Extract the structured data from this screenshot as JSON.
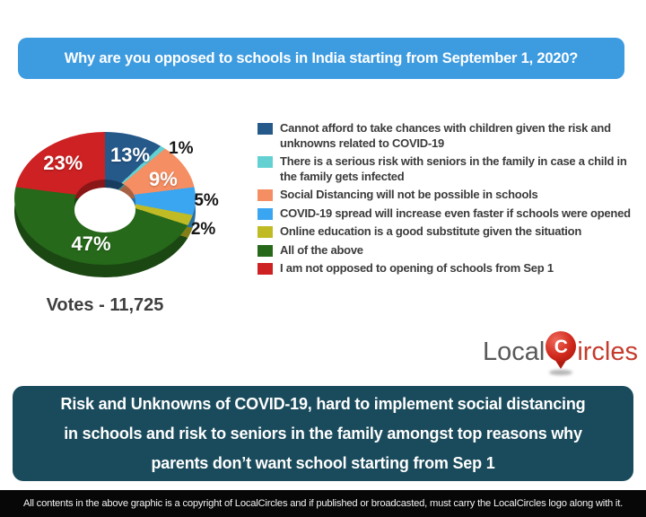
{
  "title": "Why are you opposed to schools in India starting from September 1, 2020?",
  "votes_label": "Votes - 11,725",
  "chart_data": {
    "type": "pie",
    "donut": true,
    "title": "Why are you opposed to schools in India starting from September 1, 2020?",
    "total_votes": 11725,
    "start_angle_deg": 0,
    "direction": "clockwise",
    "legend_position": "right",
    "slices": [
      {
        "label": "Cannot afford to take chances with children given the risk and unknowns related to COVID-19",
        "value": 13,
        "color": "#25598a",
        "label_inside": true
      },
      {
        "label": "There is a serious risk with seniors in the family in case a child in the family gets infected",
        "value": 1,
        "color": "#63d1d2",
        "label_inside": false
      },
      {
        "label": "Social Distancing will not be possible in schools",
        "value": 9,
        "color": "#f58e63",
        "label_inside": true
      },
      {
        "label": "COVID-19 spread will increase even faster if schools were opened",
        "value": 5,
        "color": "#3aa5f0",
        "label_inside": false
      },
      {
        "label": "Online education is a good substitute given the situation",
        "value": 2,
        "color": "#c0ba25",
        "label_inside": false
      },
      {
        "label": "All of the above",
        "value": 47,
        "color": "#26691a",
        "label_inside": true
      },
      {
        "label": "I am not opposed to opening of schools from Sep 1",
        "value": 23,
        "color": "#cd2123",
        "label_inside": true
      }
    ]
  },
  "logo": {
    "part1": "Local",
    "pin_letter": "C",
    "part2": "ircles"
  },
  "summary": {
    "text": "Risk and Unknowns of COVID-19, hard to implement social distancing\nin schools and risk to seniors in the family amongst top reasons why\nparents don’t want school starting from Sep 1"
  },
  "footer": {
    "text": "All contents in the above graphic is a copyright of LocalCircles and if published or broadcasted, must carry the LocalCircles logo along with it."
  },
  "colors": {
    "title_bg": "#3d9be0",
    "summary_bg": "#1a4b5c",
    "footer_bg": "#070707",
    "legend_text": "#3b3b3b",
    "votes_text": "#3f3f3f"
  }
}
